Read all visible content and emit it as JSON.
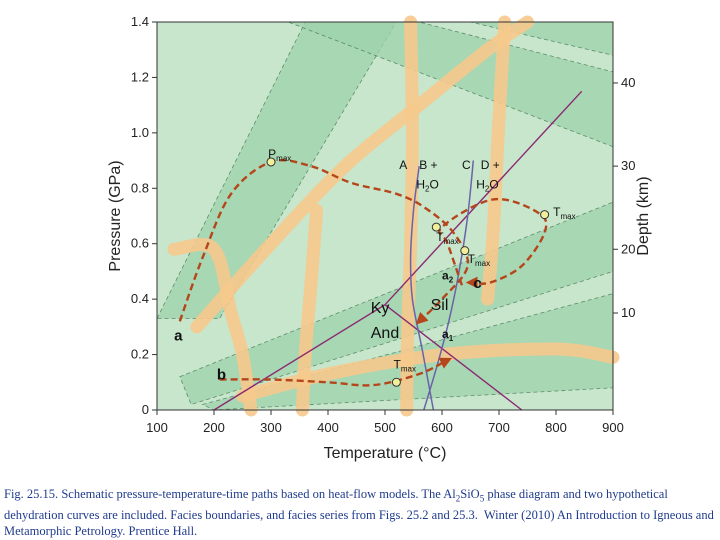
{
  "chart_data": {
    "type": "line",
    "xlabel": "Temperature (°C)",
    "ylabel": "Pressure (GPa)",
    "y2label": "Depth (km)",
    "xlim": [
      100,
      900
    ],
    "ylim": [
      0,
      1.4
    ],
    "xticks": [
      100,
      200,
      300,
      400,
      500,
      600,
      700,
      800,
      900
    ],
    "yticks": [
      0,
      0.2,
      0.4,
      0.6,
      0.8,
      1.0,
      1.2,
      1.4
    ],
    "y2ticks": [
      10,
      20,
      30,
      40
    ],
    "y2_tick_pressure": [
      0.35,
      0.58,
      0.88,
      1.18
    ],
    "paths": [
      {
        "name": "a",
        "points": [
          [
            140,
            0.32
          ],
          [
            180,
            0.55
          ],
          [
            230,
            0.78
          ],
          [
            300,
            0.895
          ],
          [
            370,
            0.88
          ],
          [
            440,
            0.82
          ],
          [
            520,
            0.78
          ],
          [
            570,
            0.73
          ],
          [
            620,
            0.64
          ],
          [
            645,
            0.52
          ],
          [
            600,
            0.4
          ],
          [
            560,
            0.32
          ]
        ],
        "label_at": [
          130,
          0.25
        ]
      },
      {
        "name": "b",
        "points": [
          [
            210,
            0.11
          ],
          [
            300,
            0.11
          ],
          [
            400,
            0.1
          ],
          [
            480,
            0.09
          ],
          [
            560,
            0.13
          ],
          [
            610,
            0.18
          ]
        ],
        "label_at": [
          205,
          0.11
        ]
      },
      {
        "name": "c",
        "points": [
          [
            635,
            0.45
          ],
          [
            610,
            0.6
          ],
          [
            600,
            0.66
          ],
          [
            690,
            0.76
          ],
          [
            770,
            0.71
          ],
          [
            780,
            0.64
          ],
          [
            740,
            0.52
          ],
          [
            685,
            0.46
          ],
          [
            650,
            0.46
          ]
        ],
        "label_at": [
          655,
          0.44
        ]
      }
    ],
    "dehydration_curves": [
      {
        "name": "A",
        "points": [
          [
            560,
            0.88
          ],
          [
            550,
            0.72
          ],
          [
            545,
            0.55
          ],
          [
            548,
            0.4
          ],
          [
            565,
            0.22
          ],
          [
            585,
            0.0
          ]
        ]
      },
      {
        "name": "C",
        "points": [
          [
            655,
            0.9
          ],
          [
            645,
            0.7
          ],
          [
            630,
            0.5
          ],
          [
            612,
            0.32
          ],
          [
            590,
            0.15
          ],
          [
            568,
            0.0
          ]
        ]
      }
    ],
    "phase_boundaries": [
      {
        "name": "Ky-And",
        "points": [
          [
            200,
            0.0
          ],
          [
            500,
            0.38
          ]
        ]
      },
      {
        "name": "And-Sil",
        "points": [
          [
            500,
            0.38
          ],
          [
            740,
            0.0
          ]
        ]
      },
      {
        "name": "Ky-Sil",
        "points": [
          [
            500,
            0.38
          ],
          [
            845,
            1.15
          ]
        ]
      }
    ],
    "annotations": [
      {
        "text": "P",
        "sub": "max",
        "at": [
          295,
          0.91
        ]
      },
      {
        "text": "T",
        "sub": "max",
        "at": [
          590,
          0.61
        ]
      },
      {
        "text": "T",
        "sub": "max",
        "at": [
          645,
          0.53
        ]
      },
      {
        "text": "T",
        "sub": "max",
        "at": [
          795,
          0.7
        ]
      },
      {
        "text": "T",
        "sub": "max",
        "at": [
          515,
          0.15
        ]
      },
      {
        "text": "a",
        "sub": "2",
        "at": [
          600,
          0.47
        ]
      },
      {
        "text": "a",
        "sub": "1",
        "at": [
          600,
          0.26
        ]
      },
      {
        "text": "Ky",
        "at": [
          475,
          0.35
        ]
      },
      {
        "text": "Sil",
        "at": [
          580,
          0.36
        ]
      },
      {
        "text": "And",
        "at": [
          475,
          0.26
        ]
      },
      {
        "text": "A",
        "at": [
          525,
          0.87
        ]
      },
      {
        "text": "B +",
        "at": [
          560,
          0.87
        ]
      },
      {
        "text": "H",
        "sub": "2",
        "tail": "O",
        "at": [
          555,
          0.8
        ]
      },
      {
        "text": "C",
        "at": [
          635,
          0.87
        ]
      },
      {
        "text": "D +",
        "at": [
          668,
          0.87
        ]
      },
      {
        "text": "H",
        "sub": "2",
        "tail": "O",
        "at": [
          660,
          0.8
        ]
      }
    ]
  },
  "caption": {
    "fig_label": "Fig. 25.15.",
    "part1": " Schematic pressure-temperature-time paths based on heat-flow models. The Al",
    "sub1": "2",
    "part2": "SiO",
    "sub2": "5",
    "part3": " phase diagram and two hypothetical dehydration curves are included. Facies boundaries, and facies series from Figs. 25.2 and 25.3.  Winter (2010) An Introduction to Igneous and Metamorphic Petrology. Prentice Hall."
  },
  "colors": {
    "background": "#c7e6cc",
    "facies_band": "#9ed3ac",
    "facies_series": "#f6c98c",
    "path": "#b5451b",
    "phase_line": "#8a2a73",
    "dehydration_line": "#6a63a8",
    "marker": "#f1ef9a"
  }
}
